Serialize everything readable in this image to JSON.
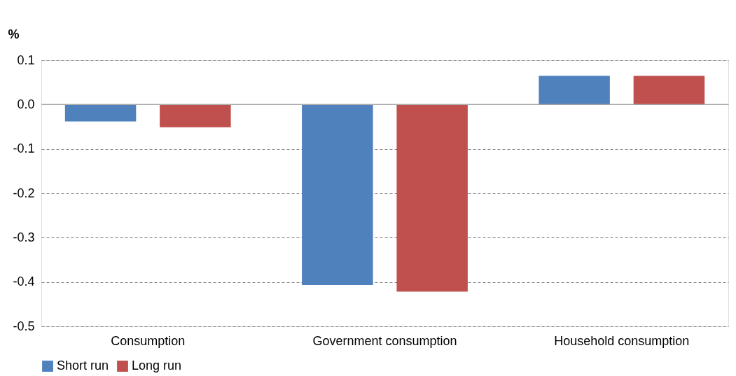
{
  "chart_data": {
    "type": "bar",
    "ylabel": "%",
    "categories": [
      "Consumption",
      "Government consumption",
      "Household consumption"
    ],
    "series": [
      {
        "name": "Short run",
        "color": "#4f81bd",
        "values": [
          -0.038,
          -0.407,
          0.065
        ]
      },
      {
        "name": "Long run",
        "color": "#c0504d",
        "values": [
          -0.051,
          -0.422,
          0.065
        ]
      }
    ],
    "ylim": [
      -0.5,
      0.1
    ],
    "yticks": [
      {
        "value": 0.1,
        "label": "0.1"
      },
      {
        "value": 0,
        "label": "0.0"
      },
      {
        "value": -0.1,
        "label": "-0.1"
      },
      {
        "value": -0.2,
        "label": "-0.2"
      },
      {
        "value": -0.3,
        "label": "-0.3"
      },
      {
        "value": -0.4,
        "label": "-0.4"
      },
      {
        "value": -0.5,
        "label": "-0.5"
      }
    ],
    "ref_lines": [
      {
        "axis": "y",
        "value": 0,
        "color": "#a6a6a6",
        "line_style": "solid"
      }
    ],
    "grid": "y",
    "legend": "bottom"
  }
}
